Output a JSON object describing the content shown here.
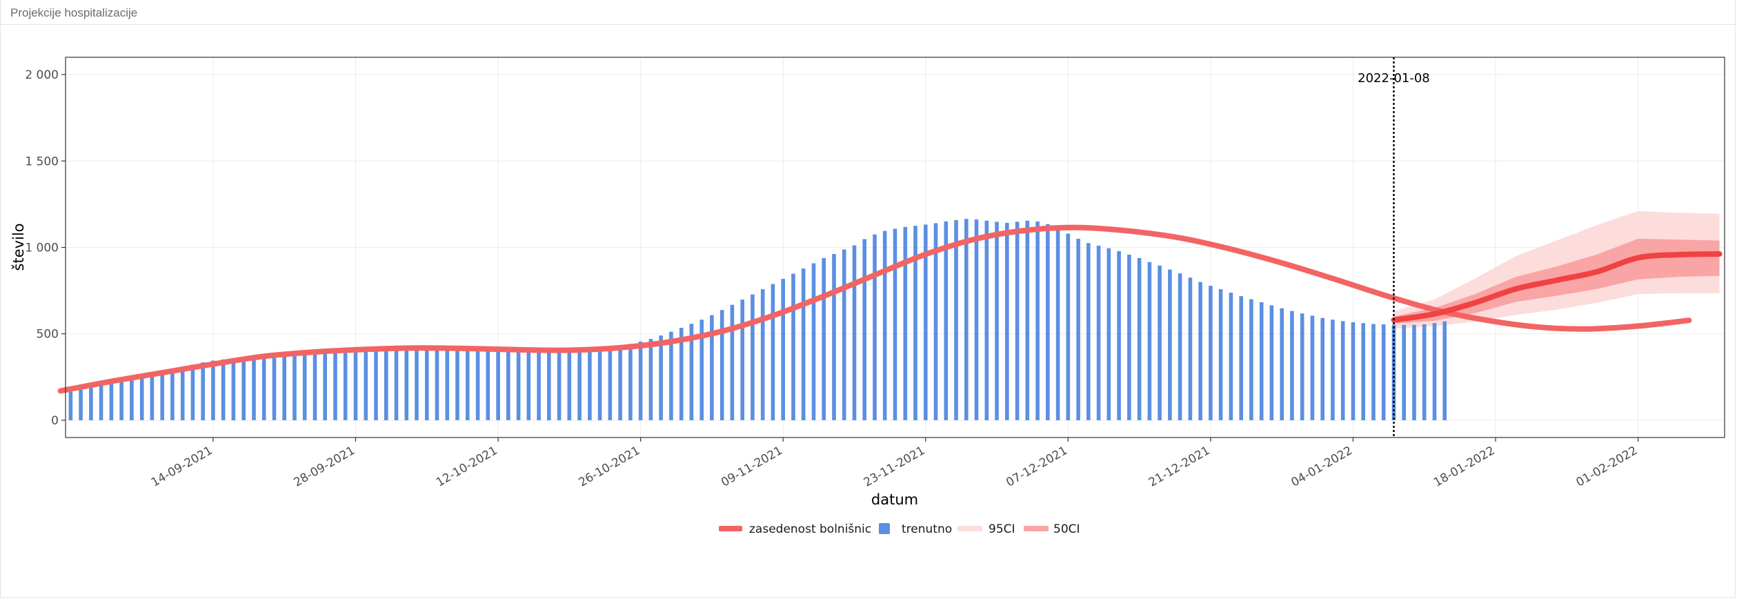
{
  "page": {
    "title": "Projekcije hospitalizacije"
  },
  "colors": {
    "bars": "#5B8FE3",
    "line": "#F26464",
    "projection": "#F04242",
    "band95": "#FDDCDC",
    "band50": "#F9A5A5",
    "grid": "#EBEBEB",
    "today": "#000000"
  },
  "chart_data": {
    "type": "bar",
    "xlabel": "datum",
    "ylabel": "število",
    "ylim": [
      -100,
      2100
    ],
    "yticks": [
      0,
      500,
      1000,
      1500,
      2000
    ],
    "ytick_labels": [
      "0",
      "500",
      "1 000",
      "1 500",
      "2 000"
    ],
    "xlim": [
      -14.5,
      148.5
    ],
    "xticks": [
      {
        "day": 0,
        "label": "14-09-2021"
      },
      {
        "day": 14,
        "label": "28-09-2021"
      },
      {
        "day": 28,
        "label": "12-10-2021"
      },
      {
        "day": 42,
        "label": "26-10-2021"
      },
      {
        "day": 56,
        "label": "09-11-2021"
      },
      {
        "day": 70,
        "label": "23-11-2021"
      },
      {
        "day": 84,
        "label": "07-12-2021"
      },
      {
        "day": 98,
        "label": "21-12-2021"
      },
      {
        "day": 112,
        "label": "04-01-2022"
      },
      {
        "day": 126,
        "label": "18-01-2022"
      },
      {
        "day": 140,
        "label": "01-02-2022"
      }
    ],
    "annotation": {
      "day": 116,
      "label": "2022-01-08"
    },
    "bar_start_day": -14,
    "bar_values": [
      165,
      180,
      192,
      205,
      218,
      230,
      245,
      262,
      272,
      280,
      292,
      305,
      322,
      335,
      345,
      352,
      360,
      367,
      373,
      378,
      383,
      388,
      392,
      395,
      398,
      402,
      405,
      405,
      408,
      408,
      410,
      410,
      412,
      412,
      410,
      410,
      408,
      408,
      405,
      405,
      405,
      405,
      403,
      403,
      403,
      405,
      407,
      408,
      410,
      412,
      414,
      417,
      420,
      425,
      432,
      442,
      455,
      470,
      490,
      512,
      535,
      558,
      582,
      608,
      638,
      668,
      698,
      728,
      758,
      788,
      818,
      848,
      878,
      908,
      938,
      962,
      988,
      1012,
      1048,
      1075,
      1095,
      1108,
      1118,
      1125,
      1132,
      1140,
      1150,
      1158,
      1165,
      1162,
      1155,
      1148,
      1142,
      1148,
      1155,
      1150,
      1135,
      1110,
      1080,
      1050,
      1025,
      1010,
      995,
      978,
      958,
      938,
      915,
      895,
      872,
      850,
      825,
      800,
      778,
      758,
      738,
      718,
      700,
      683,
      665,
      648,
      632,
      618,
      605,
      592,
      582,
      573,
      567,
      562,
      557,
      555,
      553,
      552,
      552,
      555,
      562,
      572
    ],
    "line_start_day": -15,
    "line_values": [
      {
        "d": -15,
        "v": 170
      },
      {
        "d": -10,
        "v": 225
      },
      {
        "d": -5,
        "v": 275
      },
      {
        "d": 0,
        "v": 325
      },
      {
        "d": 5,
        "v": 370
      },
      {
        "d": 10,
        "v": 395
      },
      {
        "d": 15,
        "v": 410
      },
      {
        "d": 20,
        "v": 418
      },
      {
        "d": 25,
        "v": 415
      },
      {
        "d": 30,
        "v": 408
      },
      {
        "d": 35,
        "v": 405
      },
      {
        "d": 40,
        "v": 420
      },
      {
        "d": 45,
        "v": 455
      },
      {
        "d": 50,
        "v": 515
      },
      {
        "d": 55,
        "v": 605
      },
      {
        "d": 60,
        "v": 718
      },
      {
        "d": 65,
        "v": 840
      },
      {
        "d": 70,
        "v": 960
      },
      {
        "d": 75,
        "v": 1050
      },
      {
        "d": 80,
        "v": 1100
      },
      {
        "d": 85,
        "v": 1115
      },
      {
        "d": 90,
        "v": 1095
      },
      {
        "d": 95,
        "v": 1055
      },
      {
        "d": 100,
        "v": 990
      },
      {
        "d": 105,
        "v": 910
      },
      {
        "d": 110,
        "v": 820
      },
      {
        "d": 115,
        "v": 725
      },
      {
        "d": 120,
        "v": 640
      },
      {
        "d": 125,
        "v": 580
      },
      {
        "d": 130,
        "v": 540
      },
      {
        "d": 135,
        "v": 528
      },
      {
        "d": 140,
        "v": 545
      },
      {
        "d": 145,
        "v": 578
      }
    ],
    "projection": [
      {
        "d": 116,
        "v": 580
      },
      {
        "d": 120,
        "v": 615
      },
      {
        "d": 124,
        "v": 680
      },
      {
        "d": 128,
        "v": 760
      },
      {
        "d": 132,
        "v": 810
      },
      {
        "d": 136,
        "v": 860
      },
      {
        "d": 140,
        "v": 940
      },
      {
        "d": 144,
        "v": 958
      },
      {
        "d": 148,
        "v": 962
      }
    ],
    "band50": [
      {
        "d": 116,
        "lo": 560,
        "hi": 600
      },
      {
        "d": 120,
        "lo": 575,
        "hi": 650
      },
      {
        "d": 124,
        "lo": 620,
        "hi": 730
      },
      {
        "d": 128,
        "lo": 685,
        "hi": 830
      },
      {
        "d": 132,
        "lo": 720,
        "hi": 890
      },
      {
        "d": 136,
        "lo": 760,
        "hi": 960
      },
      {
        "d": 140,
        "lo": 815,
        "hi": 1050
      },
      {
        "d": 144,
        "lo": 830,
        "hi": 1045
      },
      {
        "d": 148,
        "lo": 835,
        "hi": 1040
      }
    ],
    "band95": [
      {
        "d": 116,
        "lo": 530,
        "hi": 630
      },
      {
        "d": 120,
        "lo": 545,
        "hi": 700
      },
      {
        "d": 124,
        "lo": 570,
        "hi": 820
      },
      {
        "d": 128,
        "lo": 610,
        "hi": 950
      },
      {
        "d": 132,
        "lo": 640,
        "hi": 1040
      },
      {
        "d": 136,
        "lo": 680,
        "hi": 1130
      },
      {
        "d": 140,
        "lo": 730,
        "hi": 1210
      },
      {
        "d": 144,
        "lo": 735,
        "hi": 1200
      },
      {
        "d": 148,
        "lo": 735,
        "hi": 1195
      }
    ],
    "legend": [
      {
        "key": "line",
        "label": "zasedenost bolnišnic"
      },
      {
        "key": "bars",
        "label": "trenutno"
      },
      {
        "key": "band95",
        "label": "95CI"
      },
      {
        "key": "band50",
        "label": "50CI"
      }
    ]
  }
}
